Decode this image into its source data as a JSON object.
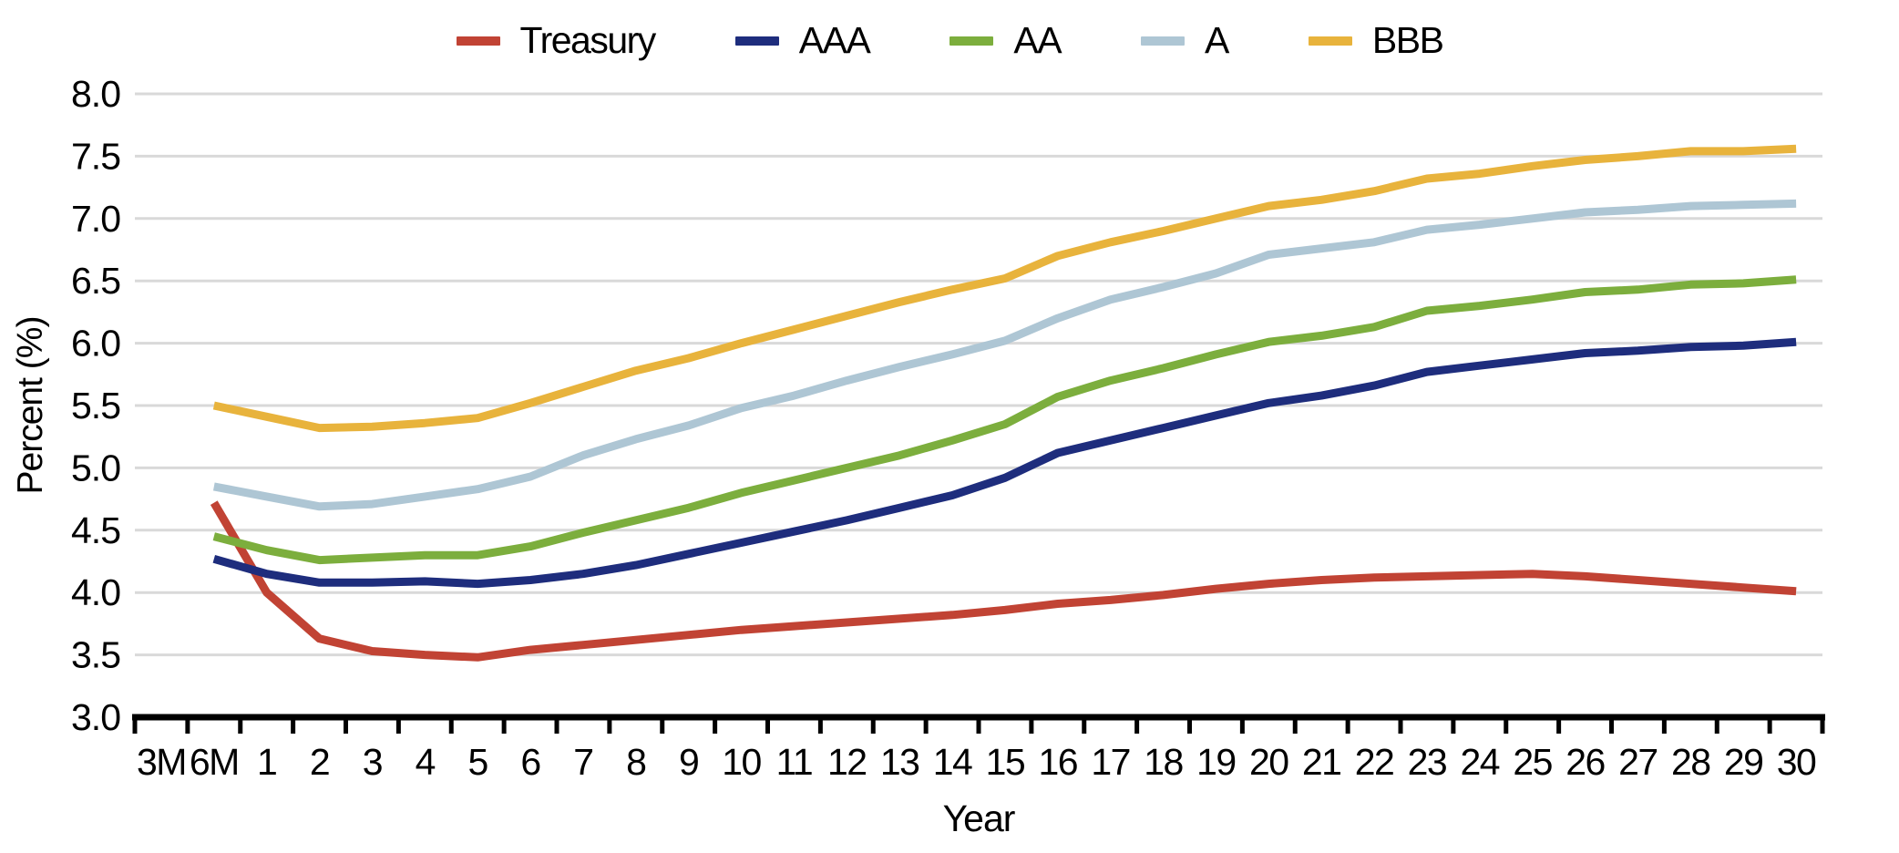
{
  "colors": {
    "background": "#ffffff",
    "gridline": "#d9d9d9",
    "axis": "#000000",
    "text": "#000000"
  },
  "chart_data": {
    "type": "line",
    "title": "",
    "xlabel": "Year",
    "ylabel": "Percent (%)",
    "ylim": [
      3.0,
      8.0
    ],
    "ytick_step": 0.5,
    "ytick_labels": [
      "3.0",
      "3.5",
      "4.0",
      "4.5",
      "5.0",
      "5.5",
      "6.0",
      "6.5",
      "7.0",
      "7.5",
      "8.0"
    ],
    "grid": "horizontal",
    "legend_position": "top",
    "categories": [
      "3M",
      "6M",
      "1",
      "2",
      "3",
      "4",
      "5",
      "6",
      "7",
      "8",
      "9",
      "10",
      "11",
      "12",
      "13",
      "14",
      "15",
      "16",
      "17",
      "18",
      "19",
      "20",
      "21",
      "22",
      "23",
      "24",
      "25",
      "26",
      "27",
      "28",
      "29",
      "30"
    ],
    "series": [
      {
        "name": "Treasury",
        "color": "#c14334",
        "values": [
          null,
          4.72,
          4.0,
          3.63,
          3.53,
          3.5,
          3.48,
          3.54,
          3.58,
          3.62,
          3.66,
          3.7,
          3.73,
          3.76,
          3.79,
          3.82,
          3.86,
          3.91,
          3.94,
          3.98,
          4.03,
          4.07,
          4.1,
          4.12,
          4.13,
          4.14,
          4.15,
          4.13,
          4.1,
          4.07,
          4.04,
          4.01
        ]
      },
      {
        "name": "AAA",
        "color": "#1e2d7d",
        "values": [
          null,
          4.27,
          4.15,
          4.08,
          4.08,
          4.09,
          4.07,
          4.1,
          4.15,
          4.22,
          4.31,
          4.4,
          4.49,
          4.58,
          4.68,
          4.78,
          4.92,
          5.12,
          5.22,
          5.32,
          5.42,
          5.52,
          5.58,
          5.66,
          5.77,
          5.82,
          5.87,
          5.92,
          5.94,
          5.97,
          5.98,
          6.01
        ]
      },
      {
        "name": "AA",
        "color": "#7cae3d",
        "values": [
          null,
          4.45,
          4.34,
          4.26,
          4.28,
          4.3,
          4.3,
          4.37,
          4.48,
          4.58,
          4.68,
          4.8,
          4.9,
          5.0,
          5.1,
          5.22,
          5.35,
          5.57,
          5.7,
          5.8,
          5.91,
          6.01,
          6.06,
          6.13,
          6.26,
          6.3,
          6.35,
          6.41,
          6.43,
          6.47,
          6.48,
          6.51
        ]
      },
      {
        "name": "A",
        "color": "#aec6d4",
        "values": [
          null,
          4.85,
          4.77,
          4.69,
          4.71,
          4.77,
          4.83,
          4.93,
          5.1,
          5.23,
          5.34,
          5.48,
          5.58,
          5.7,
          5.81,
          5.91,
          6.02,
          6.2,
          6.35,
          6.45,
          6.56,
          6.71,
          6.76,
          6.81,
          6.91,
          6.95,
          7.0,
          7.05,
          7.07,
          7.1,
          7.11,
          7.12
        ]
      },
      {
        "name": "BBB",
        "color": "#e8b33c",
        "values": [
          null,
          5.5,
          5.41,
          5.32,
          5.33,
          5.36,
          5.4,
          5.52,
          5.65,
          5.78,
          5.88,
          6.0,
          6.11,
          6.22,
          6.33,
          6.43,
          6.52,
          6.7,
          6.81,
          6.9,
          7.0,
          7.1,
          7.15,
          7.22,
          7.32,
          7.36,
          7.42,
          7.47,
          7.5,
          7.54,
          7.54,
          7.56
        ]
      }
    ]
  }
}
